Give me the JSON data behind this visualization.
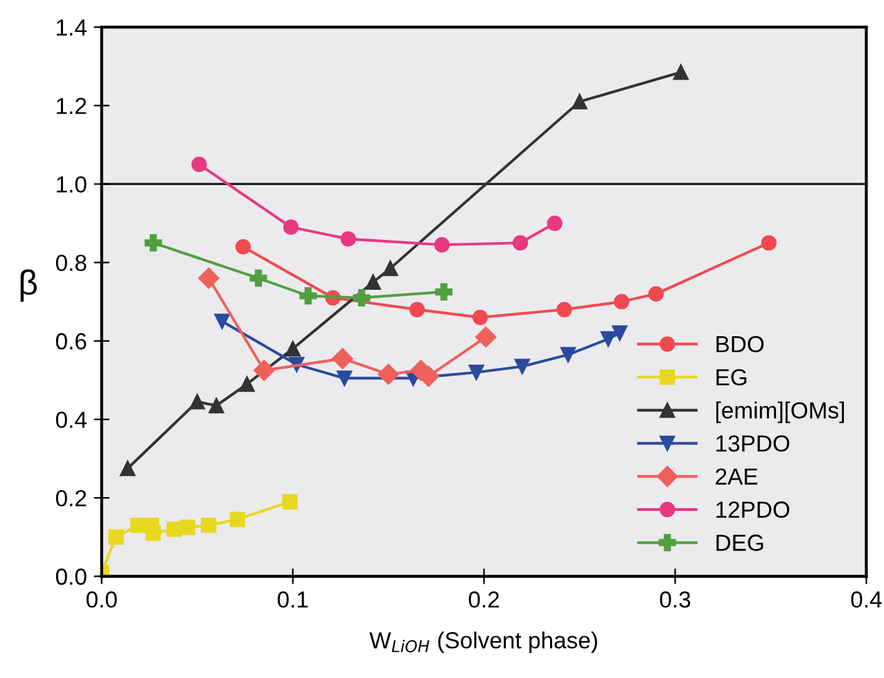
{
  "chart_data": {
    "type": "line",
    "xlabel": "W$_{LiOH}$ (Solvent phase)",
    "ylabel": "β",
    "xlim": [
      0,
      0.4
    ],
    "ylim": [
      0,
      1.4
    ],
    "xticks": [
      {
        "value": 0,
        "label": "0.0"
      },
      0.1,
      0.2,
      0.3,
      0.4
    ],
    "yticks": [
      {
        "value": 0,
        "label": "0.0"
      },
      0.2,
      0.4,
      0.6,
      0.8,
      {
        "value": 1,
        "label": "1.0"
      },
      1.2,
      1.4
    ],
    "grid": false,
    "legend": "lower right",
    "line_style": "solid",
    "ref_lines": [
      {
        "axis": "y",
        "value": 1.0,
        "color": "#222222",
        "line_style": "solid"
      }
    ],
    "series": [
      {
        "name": "BDO",
        "color": "#f04a50",
        "marker": "circle",
        "x": [
          0.074,
          0.121,
          0.165,
          0.198,
          0.242,
          0.272,
          0.29,
          0.349
        ],
        "values": [
          0.84,
          0.71,
          0.68,
          0.66,
          0.68,
          0.7,
          0.72,
          0.85
        ]
      },
      {
        "name": "EG",
        "color": "#e8d820",
        "marker": "square",
        "x": [
          0.0,
          0.0075,
          0.019,
          0.026,
          0.027,
          0.038,
          0.045,
          0.056,
          0.071,
          0.0985
        ],
        "values": [
          0.01,
          0.1,
          0.13,
          0.13,
          0.11,
          0.12,
          0.125,
          0.13,
          0.145,
          0.19
        ]
      },
      {
        "name": "[emim][OMs]",
        "color": "#333333",
        "marker": "triangle",
        "x": [
          0.0136,
          0.05,
          0.06,
          0.076,
          0.1,
          0.142,
          0.151,
          0.25,
          0.303
        ],
        "values": [
          0.275,
          0.445,
          0.435,
          0.49,
          0.58,
          0.75,
          0.785,
          1.21,
          1.285
        ]
      },
      {
        "name": "13PDO",
        "color": "#2a4aa0",
        "marker": "triangle_down",
        "x": [
          0.063,
          0.102,
          0.127,
          0.163,
          0.196,
          0.22,
          0.244,
          0.265,
          0.271
        ],
        "values": [
          0.65,
          0.54,
          0.505,
          0.505,
          0.52,
          0.535,
          0.565,
          0.605,
          0.62
        ]
      },
      {
        "name": "2AE",
        "color": "#f0605a",
        "marker": "diamond",
        "x": [
          0.056,
          0.085,
          0.126,
          0.15,
          0.167,
          0.171,
          0.201
        ],
        "values": [
          0.76,
          0.525,
          0.555,
          0.515,
          0.525,
          0.51,
          0.61
        ]
      },
      {
        "name": "12PDO",
        "color": "#e83880",
        "marker": "circle",
        "x": [
          0.051,
          0.099,
          0.129,
          0.178,
          0.219,
          0.237
        ],
        "values": [
          1.05,
          0.89,
          0.86,
          0.845,
          0.85,
          0.9
        ]
      },
      {
        "name": "DEG",
        "color": "#50a040",
        "marker": "cross",
        "x": [
          0.027,
          0.082,
          0.108,
          0.136,
          0.179
        ],
        "values": [
          0.85,
          0.76,
          0.715,
          0.71,
          0.725
        ]
      }
    ]
  }
}
